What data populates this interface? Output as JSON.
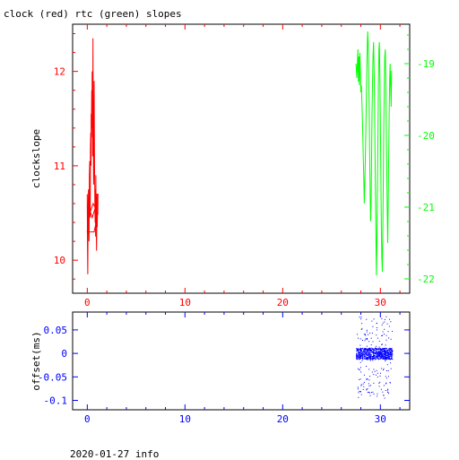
{
  "title": "clock (red) rtc (green) slopes",
  "footer": "2020-01-27 info",
  "colors": {
    "clock": "#ff0000",
    "rtc": "#00ff00",
    "offset": "#0000ff",
    "axis": "#000000"
  },
  "chart_data": [
    {
      "type": "line",
      "ylabel": "clockslope",
      "xlim": [
        -1.5,
        33
      ],
      "x_ticks": [
        "0",
        "10",
        "20",
        "30"
      ],
      "ylim_left": [
        9.65,
        12.5
      ],
      "y_ticks_left": [
        "10",
        "11",
        "12"
      ],
      "ylim_right": [
        -22.2,
        -18.45
      ],
      "y_ticks_right": [
        "-19",
        "-20",
        "-21",
        "-22"
      ],
      "grid": false,
      "series": [
        {
          "name": "clock",
          "axis": "left",
          "x": [
            0.0,
            0.02,
            0.05,
            0.08,
            0.1,
            0.12,
            0.15,
            0.18,
            0.2,
            0.22,
            0.25,
            0.28,
            0.3,
            0.33,
            0.35,
            0.38,
            0.4,
            0.42,
            0.45,
            0.48,
            0.5,
            0.52,
            0.55,
            0.58,
            0.6,
            0.62,
            0.65,
            0.68,
            0.7,
            0.72,
            0.75,
            0.78,
            0.8,
            0.83,
            0.85,
            0.88,
            0.9,
            0.92,
            0.95,
            0.98,
            1.0,
            1.02,
            1.05,
            1.08,
            1.1,
            1.0,
            0.8,
            0.5,
            0.2,
            0.0,
            0.4,
            0.7,
            1.0,
            1.1,
            0.6,
            0.1
          ],
          "y": [
            10.7,
            10.15,
            9.85,
            10.3,
            10.6,
            10.75,
            10.4,
            10.2,
            10.5,
            10.9,
            11.05,
            10.7,
            10.45,
            11.2,
            11.35,
            11.0,
            11.55,
            11.3,
            11.8,
            11.4,
            12.0,
            11.6,
            11.1,
            12.35,
            11.75,
            11.25,
            10.8,
            11.15,
            11.9,
            11.45,
            10.95,
            10.6,
            10.4,
            10.75,
            10.25,
            10.9,
            10.55,
            10.3,
            10.1,
            10.45,
            10.7,
            10.35,
            10.6,
            10.5,
            10.7,
            10.7,
            10.55,
            10.45,
            10.55,
            10.3,
            10.3,
            10.3,
            10.45,
            10.5,
            10.6,
            10.45
          ]
        },
        {
          "name": "rtc",
          "axis": "right",
          "x": [
            27.5,
            27.6,
            27.7,
            27.75,
            27.8,
            27.85,
            27.9,
            27.95,
            28.0,
            28.05,
            28.1,
            28.15,
            28.2,
            28.25,
            28.3,
            28.35,
            28.4,
            28.45,
            28.5,
            28.55,
            28.6,
            28.65,
            28.7,
            28.75,
            28.8,
            28.85,
            28.9,
            28.95,
            29.0,
            29.05,
            29.1,
            29.15,
            29.2,
            29.25,
            29.3,
            29.35,
            29.4,
            29.45,
            29.5,
            29.55,
            29.6,
            29.65,
            29.7,
            29.75,
            29.8,
            29.85,
            29.9,
            29.95,
            30.0,
            30.05,
            30.1,
            30.15,
            30.2,
            30.25,
            30.3,
            30.35,
            30.4,
            30.45,
            30.5,
            30.55,
            30.6,
            30.65,
            30.7,
            30.75,
            30.8,
            30.85,
            30.9,
            30.95,
            31.0,
            31.05,
            31.1,
            31.15
          ],
          "y": [
            -19.0,
            -19.2,
            -18.8,
            -19.25,
            -18.9,
            -19.3,
            -18.85,
            -19.1,
            -19.4,
            -19.3,
            -19.5,
            -19.7,
            -20.0,
            -20.3,
            -20.6,
            -20.95,
            -20.7,
            -20.4,
            -20.0,
            -19.6,
            -19.2,
            -18.8,
            -18.55,
            -18.7,
            -19.1,
            -19.6,
            -20.2,
            -20.8,
            -21.2,
            -20.9,
            -20.3,
            -19.7,
            -19.2,
            -18.9,
            -18.7,
            -19.0,
            -19.5,
            -20.2,
            -20.9,
            -21.5,
            -21.95,
            -21.4,
            -20.7,
            -20.0,
            -19.3,
            -18.8,
            -18.7,
            -19.2,
            -19.8,
            -20.5,
            -21.3,
            -21.7,
            -21.9,
            -21.3,
            -20.6,
            -19.9,
            -19.3,
            -18.9,
            -18.8,
            -19.2,
            -19.8,
            -20.4,
            -21.0,
            -21.5,
            -21.0,
            -20.3,
            -19.7,
            -19.2,
            -19.0,
            -19.3,
            -19.6,
            -19.1
          ]
        }
      ]
    },
    {
      "type": "scatter",
      "ylabel": "offset(ms)",
      "xlim": [
        -1.5,
        33
      ],
      "x_ticks": [
        "0",
        "10",
        "20",
        "30"
      ],
      "ylim": [
        -0.12,
        0.088
      ],
      "y_ticks": [
        "0.05",
        "0",
        "-0.05",
        "-0.1"
      ],
      "grid": false,
      "series": [
        {
          "name": "offset",
          "x_range": [
            27.5,
            31.2
          ],
          "band": [
            -0.012,
            0.012
          ],
          "spread": [
            -0.095,
            0.08
          ]
        }
      ]
    }
  ]
}
